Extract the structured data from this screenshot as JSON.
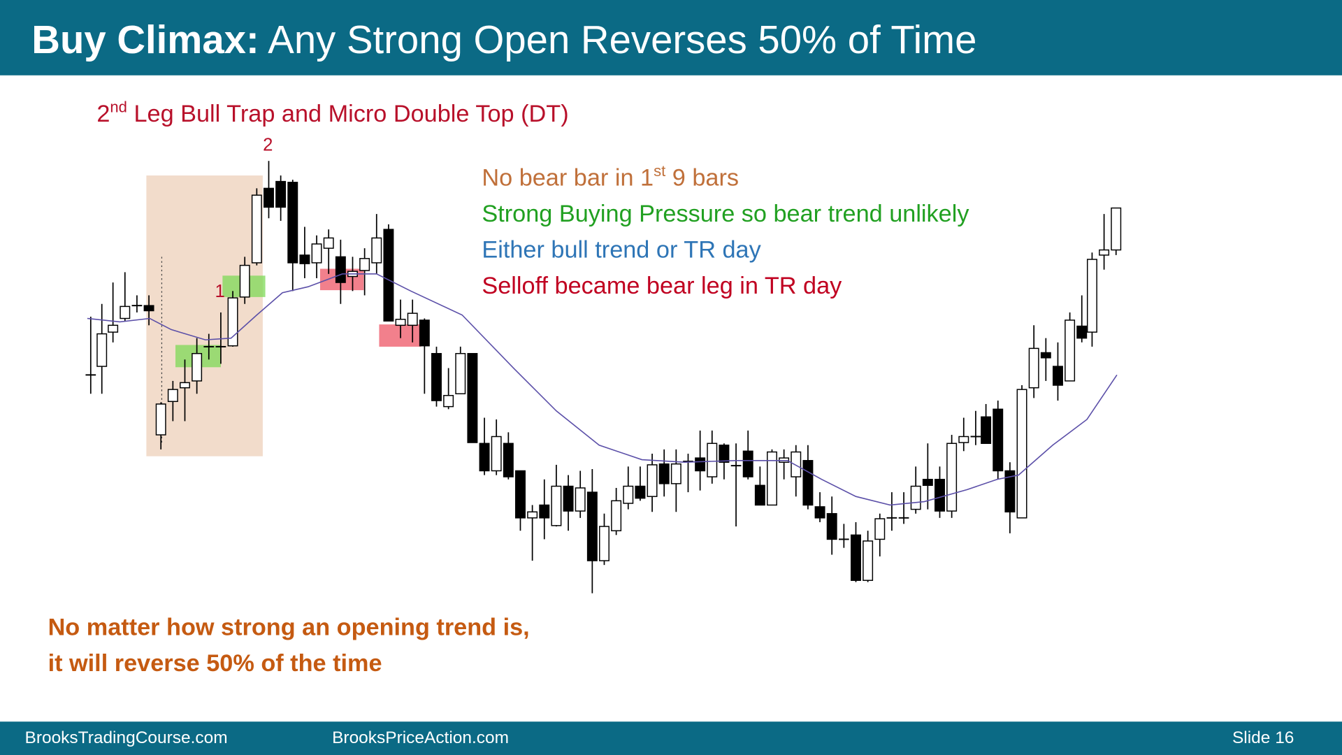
{
  "header": {
    "title_bold": "Buy Climax:",
    "title_rest": " Any Strong Open Reverses 50% of Time"
  },
  "subtitle": {
    "lead": "2",
    "sup": "nd",
    "rest": " Leg Bull Trap and Micro Double Top (DT)"
  },
  "annotations": {
    "line1": {
      "lead": "No bear bar in 1",
      "sup": "st",
      "rest": " 9 bars"
    },
    "line2": "Strong Buying Pressure so bear trend unlikely",
    "line3": "Either bull trend or TR day",
    "line4": "Selloff became bear leg in TR day"
  },
  "chart_labels": {
    "leg2": "2",
    "leg1": "1"
  },
  "conclusion": [
    "No matter how strong an opening trend is,",
    "it will reverse 50% of the time"
  ],
  "footer": {
    "left": "BrooksTradingCourse.com",
    "middle": "BrooksPriceAction.com",
    "right": "Slide  16"
  }
}
